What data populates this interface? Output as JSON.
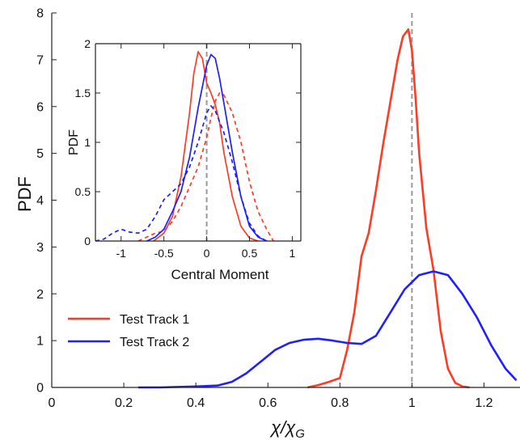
{
  "chart_data": [
    {
      "type": "line",
      "xlabel": "χ/χG",
      "ylabel": "PDF",
      "xlim": [
        0,
        1.3
      ],
      "ylim": [
        0,
        8
      ],
      "xticks": [
        0,
        0.2,
        0.4,
        0.6,
        0.8,
        1,
        1.2
      ],
      "xtick_labels": [
        "0",
        "0.2",
        "0.4",
        "0.6",
        "0.8",
        "1",
        "1.2"
      ],
      "yticks": [
        0,
        1,
        2,
        3,
        4,
        5,
        6,
        7,
        8
      ],
      "ytick_labels": [
        "0",
        "1",
        "2",
        "3",
        "4",
        "5",
        "6",
        "7",
        "8"
      ],
      "grid": false,
      "legend_position": "lower-left",
      "reference_line": {
        "x": 1,
        "style": "dashed",
        "color": "#999999"
      },
      "series": [
        {
          "name": "Test Track 1",
          "color": "#ff3b24",
          "style": "solid",
          "x": [
            0.71,
            0.74,
            0.77,
            0.8,
            0.82,
            0.84,
            0.86,
            0.88,
            0.9,
            0.92,
            0.94,
            0.96,
            0.975,
            0.99,
            1.0,
            1.01,
            1.02,
            1.04,
            1.06,
            1.08,
            1.1,
            1.12,
            1.14,
            1.16
          ],
          "y": [
            0.0,
            0.05,
            0.12,
            0.2,
            0.8,
            1.6,
            2.8,
            3.3,
            4.2,
            5.2,
            6.1,
            7.0,
            7.5,
            7.65,
            7.2,
            6.2,
            5.0,
            3.4,
            2.5,
            1.2,
            0.4,
            0.1,
            0.02,
            0.0
          ]
        },
        {
          "name": "Test Track 2",
          "color": "#1f1fff",
          "style": "solid",
          "x": [
            0.24,
            0.3,
            0.4,
            0.46,
            0.5,
            0.54,
            0.58,
            0.62,
            0.66,
            0.7,
            0.74,
            0.78,
            0.82,
            0.86,
            0.9,
            0.94,
            0.98,
            1.02,
            1.06,
            1.1,
            1.14,
            1.18,
            1.22,
            1.26,
            1.29
          ],
          "y": [
            0.0,
            0.0,
            0.02,
            0.04,
            0.12,
            0.3,
            0.55,
            0.8,
            0.95,
            1.02,
            1.04,
            1.0,
            0.95,
            0.93,
            1.1,
            1.6,
            2.1,
            2.4,
            2.48,
            2.4,
            2.0,
            1.5,
            0.9,
            0.4,
            0.15
          ]
        }
      ]
    },
    {
      "type": "line",
      "xlabel": "Central Moment",
      "ylabel": "PDF",
      "xlim": [
        -1.3,
        1.1
      ],
      "ylim": [
        0,
        2
      ],
      "xticks": [
        -1,
        -0.5,
        0,
        0.5,
        1
      ],
      "xtick_labels": [
        "-1",
        "-0.5",
        "0",
        "0.5",
        "1"
      ],
      "yticks": [
        0,
        0.5,
        1,
        1.5,
        2
      ],
      "ytick_labels": [
        "0",
        "0.5",
        "1",
        "1.5",
        "2"
      ],
      "grid": false,
      "reference_line": {
        "x": 0,
        "style": "dashed",
        "color": "#999999"
      },
      "series": [
        {
          "color": "#ff3b24",
          "style": "solid",
          "x": [
            -0.62,
            -0.5,
            -0.4,
            -0.3,
            -0.2,
            -0.15,
            -0.1,
            -0.05,
            0.0,
            0.05,
            0.1,
            0.15,
            0.2,
            0.3,
            0.4,
            0.5,
            0.6
          ],
          "y": [
            0.0,
            0.08,
            0.25,
            0.65,
            1.3,
            1.7,
            1.92,
            1.85,
            1.6,
            1.5,
            1.38,
            1.2,
            0.9,
            0.45,
            0.15,
            0.03,
            0.0
          ]
        },
        {
          "color": "#ff3b24",
          "style": "dashed",
          "x": [
            -0.8,
            -0.6,
            -0.5,
            -0.4,
            -0.3,
            -0.2,
            -0.1,
            0.0,
            0.05,
            0.1,
            0.15,
            0.2,
            0.3,
            0.4,
            0.5,
            0.6,
            0.7,
            0.78
          ],
          "y": [
            0.0,
            0.08,
            0.1,
            0.2,
            0.35,
            0.55,
            0.75,
            1.05,
            1.25,
            1.42,
            1.5,
            1.48,
            1.3,
            1.0,
            0.6,
            0.3,
            0.12,
            0.0
          ]
        },
        {
          "color": "#1f1fff",
          "style": "solid",
          "x": [
            -0.7,
            -0.6,
            -0.5,
            -0.4,
            -0.3,
            -0.2,
            -0.1,
            0.0,
            0.05,
            0.1,
            0.15,
            0.2,
            0.3,
            0.4,
            0.5,
            0.6,
            0.7
          ],
          "y": [
            0.0,
            0.04,
            0.12,
            0.3,
            0.5,
            0.85,
            1.35,
            1.78,
            1.89,
            1.85,
            1.65,
            1.4,
            0.9,
            0.45,
            0.15,
            0.04,
            0.0
          ]
        },
        {
          "color": "#1f1fff",
          "style": "dashed",
          "x": [
            -1.3,
            -1.2,
            -1.1,
            -1.0,
            -0.9,
            -0.8,
            -0.7,
            -0.6,
            -0.5,
            -0.4,
            -0.3,
            -0.2,
            -0.1,
            0.0,
            0.05,
            0.1,
            0.2,
            0.3,
            0.4,
            0.5,
            0.6,
            0.7
          ],
          "y": [
            0.0,
            0.02,
            0.08,
            0.12,
            0.09,
            0.08,
            0.12,
            0.25,
            0.42,
            0.5,
            0.58,
            0.75,
            1.0,
            1.3,
            1.37,
            1.32,
            1.1,
            0.8,
            0.45,
            0.18,
            0.05,
            0.0
          ]
        }
      ]
    }
  ]
}
